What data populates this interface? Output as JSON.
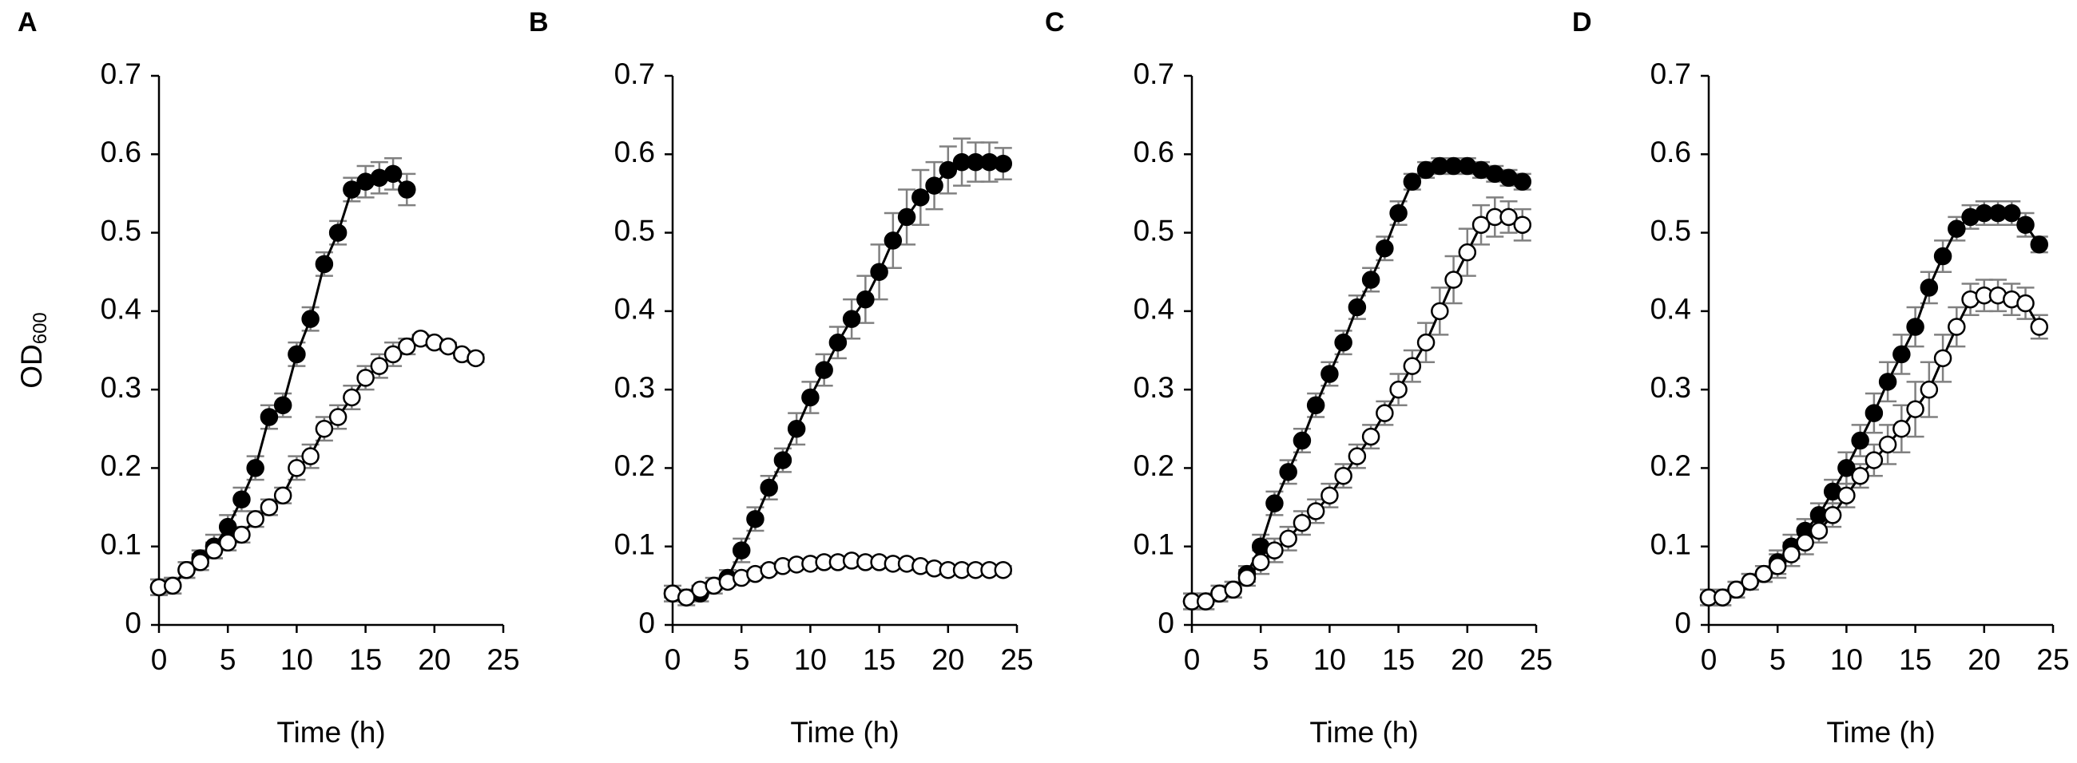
{
  "chart_data": [
    {
      "type": "line",
      "panel_label": "A",
      "xlabel": "Time (h)",
      "ylabel": {
        "text": "OD",
        "subscript": "600"
      },
      "xlim": [
        0,
        25
      ],
      "xticks": [
        0,
        5,
        10,
        15,
        20,
        25
      ],
      "ylim": [
        0,
        0.7
      ],
      "yticks": [
        0,
        0.1,
        0.2,
        0.3,
        0.4,
        0.5,
        0.6,
        0.7
      ],
      "series": [
        {
          "marker": "filled",
          "color": "#000000",
          "x": [
            0,
            1,
            2,
            3,
            4,
            5,
            6,
            7,
            8,
            9,
            10,
            11,
            12,
            13,
            14,
            15,
            16,
            17,
            18
          ],
          "values": [
            0.048,
            0.05,
            0.07,
            0.085,
            0.1,
            0.125,
            0.16,
            0.2,
            0.265,
            0.28,
            0.345,
            0.39,
            0.46,
            0.5,
            0.555,
            0.565,
            0.57,
            0.575,
            0.555
          ],
          "errors": [
            0.01,
            0.01,
            0.01,
            0.01,
            0.015,
            0.015,
            0.015,
            0.015,
            0.015,
            0.015,
            0.015,
            0.015,
            0.015,
            0.015,
            0.015,
            0.02,
            0.02,
            0.02,
            0.02
          ]
        },
        {
          "marker": "open",
          "color": "#000000",
          "x": [
            0,
            1,
            2,
            3,
            4,
            5,
            6,
            7,
            8,
            9,
            10,
            11,
            12,
            13,
            14,
            15,
            16,
            17,
            18,
            19,
            20,
            21,
            22,
            23
          ],
          "values": [
            0.048,
            0.05,
            0.07,
            0.08,
            0.095,
            0.105,
            0.115,
            0.135,
            0.15,
            0.165,
            0.2,
            0.215,
            0.25,
            0.265,
            0.29,
            0.315,
            0.33,
            0.345,
            0.355,
            0.365,
            0.36,
            0.355,
            0.345,
            0.34
          ],
          "errors": [
            0.01,
            0.01,
            0.01,
            0.01,
            0.01,
            0.01,
            0.01,
            0.01,
            0.01,
            0.01,
            0.015,
            0.015,
            0.015,
            0.015,
            0.015,
            0.015,
            0.015,
            0.015,
            0.01,
            0.005,
            0.005,
            0.005,
            0.005,
            0.005
          ]
        }
      ]
    },
    {
      "type": "line",
      "panel_label": "B",
      "xlabel": "Time (h)",
      "xlim": [
        0,
        25
      ],
      "xticks": [
        0,
        5,
        10,
        15,
        20,
        25
      ],
      "ylim": [
        0,
        0.7
      ],
      "yticks": [
        0,
        0.1,
        0.2,
        0.3,
        0.4,
        0.5,
        0.6,
        0.7
      ],
      "series": [
        {
          "marker": "filled",
          "color": "#000000",
          "x": [
            0,
            1,
            2,
            3,
            4,
            5,
            6,
            7,
            8,
            9,
            10,
            11,
            12,
            13,
            14,
            15,
            16,
            17,
            18,
            19,
            20,
            21,
            22,
            23,
            24
          ],
          "values": [
            0.04,
            0.035,
            0.04,
            0.05,
            0.06,
            0.095,
            0.135,
            0.175,
            0.21,
            0.25,
            0.29,
            0.325,
            0.36,
            0.39,
            0.415,
            0.45,
            0.49,
            0.52,
            0.545,
            0.56,
            0.58,
            0.59,
            0.59,
            0.59,
            0.588
          ],
          "errors": [
            0.01,
            0.01,
            0.01,
            0.01,
            0.01,
            0.015,
            0.015,
            0.015,
            0.015,
            0.02,
            0.02,
            0.02,
            0.02,
            0.025,
            0.03,
            0.035,
            0.035,
            0.035,
            0.035,
            0.03,
            0.03,
            0.03,
            0.025,
            0.025,
            0.02
          ]
        },
        {
          "marker": "open",
          "color": "#000000",
          "x": [
            0,
            1,
            2,
            3,
            4,
            5,
            6,
            7,
            8,
            9,
            10,
            11,
            12,
            13,
            14,
            15,
            16,
            17,
            18,
            19,
            20,
            21,
            22,
            23,
            24
          ],
          "values": [
            0.04,
            0.035,
            0.045,
            0.05,
            0.055,
            0.06,
            0.065,
            0.07,
            0.075,
            0.077,
            0.078,
            0.08,
            0.08,
            0.082,
            0.08,
            0.08,
            0.078,
            0.078,
            0.075,
            0.072,
            0.07,
            0.07,
            0.07,
            0.07,
            0.07
          ],
          "errors": [
            0.005,
            0.005,
            0.005,
            0.005,
            0.005,
            0.005,
            0.005,
            0.005,
            0.005,
            0.005,
            0.005,
            0.005,
            0.005,
            0.005,
            0.005,
            0.005,
            0.005,
            0.005,
            0.005,
            0.005,
            0.005,
            0.005,
            0.005,
            0.005,
            0.005
          ]
        }
      ]
    },
    {
      "type": "line",
      "panel_label": "C",
      "xlabel": "Time (h)",
      "xlim": [
        0,
        25
      ],
      "xticks": [
        0,
        5,
        10,
        15,
        20,
        25
      ],
      "ylim": [
        0,
        0.7
      ],
      "yticks": [
        0,
        0.1,
        0.2,
        0.3,
        0.4,
        0.5,
        0.6,
        0.7
      ],
      "series": [
        {
          "marker": "filled",
          "color": "#000000",
          "x": [
            0,
            1,
            2,
            3,
            4,
            5,
            6,
            7,
            8,
            9,
            10,
            11,
            12,
            13,
            14,
            15,
            16,
            17,
            18,
            19,
            20,
            21,
            22,
            23,
            24
          ],
          "values": [
            0.03,
            0.03,
            0.04,
            0.045,
            0.065,
            0.1,
            0.155,
            0.195,
            0.235,
            0.28,
            0.32,
            0.36,
            0.405,
            0.44,
            0.48,
            0.525,
            0.565,
            0.58,
            0.585,
            0.585,
            0.585,
            0.58,
            0.575,
            0.57,
            0.565
          ],
          "errors": [
            0.01,
            0.01,
            0.01,
            0.01,
            0.01,
            0.015,
            0.015,
            0.015,
            0.015,
            0.015,
            0.015,
            0.015,
            0.015,
            0.015,
            0.015,
            0.015,
            0.01,
            0.01,
            0.01,
            0.01,
            0.01,
            0.01,
            0.01,
            0.01,
            0.01
          ]
        },
        {
          "marker": "open",
          "color": "#000000",
          "x": [
            0,
            1,
            2,
            3,
            4,
            5,
            6,
            7,
            8,
            9,
            10,
            11,
            12,
            13,
            14,
            15,
            16,
            17,
            18,
            19,
            20,
            21,
            22,
            23,
            24
          ],
          "values": [
            0.03,
            0.03,
            0.04,
            0.045,
            0.06,
            0.08,
            0.095,
            0.11,
            0.13,
            0.145,
            0.165,
            0.19,
            0.215,
            0.24,
            0.27,
            0.3,
            0.33,
            0.36,
            0.4,
            0.44,
            0.475,
            0.51,
            0.52,
            0.52,
            0.51
          ],
          "errors": [
            0.01,
            0.01,
            0.01,
            0.01,
            0.01,
            0.015,
            0.015,
            0.015,
            0.015,
            0.015,
            0.015,
            0.015,
            0.015,
            0.015,
            0.015,
            0.02,
            0.02,
            0.025,
            0.03,
            0.03,
            0.03,
            0.025,
            0.025,
            0.02,
            0.02
          ]
        }
      ]
    },
    {
      "type": "line",
      "panel_label": "D",
      "xlabel": "Time (h)",
      "xlim": [
        0,
        25
      ],
      "xticks": [
        0,
        5,
        10,
        15,
        20,
        25
      ],
      "ylim": [
        0,
        0.7
      ],
      "yticks": [
        0,
        0.1,
        0.2,
        0.3,
        0.4,
        0.5,
        0.6,
        0.7
      ],
      "series": [
        {
          "marker": "filled",
          "color": "#000000",
          "x": [
            0,
            1,
            2,
            3,
            4,
            5,
            6,
            7,
            8,
            9,
            10,
            11,
            12,
            13,
            14,
            15,
            16,
            17,
            18,
            19,
            20,
            21,
            22,
            23,
            24
          ],
          "values": [
            0.035,
            0.035,
            0.045,
            0.055,
            0.065,
            0.08,
            0.1,
            0.12,
            0.14,
            0.17,
            0.2,
            0.235,
            0.27,
            0.31,
            0.345,
            0.38,
            0.43,
            0.47,
            0.505,
            0.52,
            0.525,
            0.525,
            0.525,
            0.51,
            0.485
          ],
          "errors": [
            0.01,
            0.01,
            0.01,
            0.01,
            0.01,
            0.015,
            0.015,
            0.015,
            0.015,
            0.015,
            0.02,
            0.02,
            0.025,
            0.025,
            0.025,
            0.025,
            0.02,
            0.02,
            0.015,
            0.015,
            0.015,
            0.015,
            0.015,
            0.015,
            0.01
          ]
        },
        {
          "marker": "open",
          "color": "#000000",
          "x": [
            0,
            1,
            2,
            3,
            4,
            5,
            6,
            7,
            8,
            9,
            10,
            11,
            12,
            13,
            14,
            15,
            16,
            17,
            18,
            19,
            20,
            21,
            22,
            23,
            24
          ],
          "values": [
            0.035,
            0.035,
            0.045,
            0.055,
            0.065,
            0.075,
            0.09,
            0.105,
            0.12,
            0.14,
            0.165,
            0.19,
            0.21,
            0.23,
            0.25,
            0.275,
            0.3,
            0.34,
            0.38,
            0.415,
            0.42,
            0.42,
            0.415,
            0.41,
            0.38
          ],
          "errors": [
            0.01,
            0.01,
            0.01,
            0.01,
            0.01,
            0.015,
            0.015,
            0.015,
            0.015,
            0.015,
            0.015,
            0.015,
            0.02,
            0.025,
            0.03,
            0.035,
            0.035,
            0.03,
            0.025,
            0.02,
            0.02,
            0.02,
            0.02,
            0.02,
            0.015
          ]
        }
      ]
    }
  ]
}
